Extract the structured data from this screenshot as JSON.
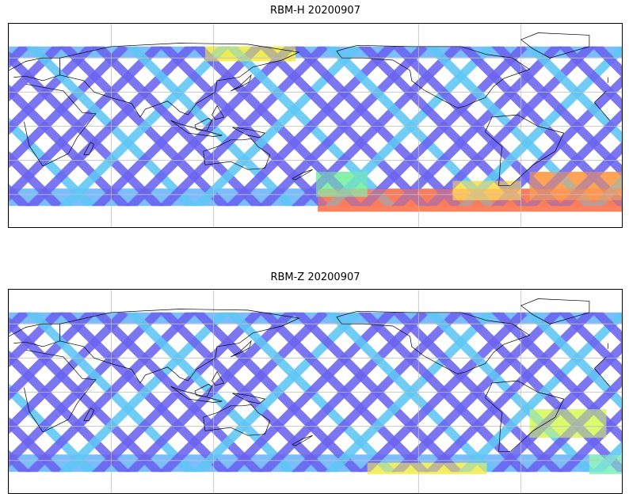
{
  "panels": [
    {
      "title": "RBM-H 20200907",
      "hot_bands": [
        {
          "lon": [
            -179,
            1
          ],
          "lat": [
            -75,
            -55
          ],
          "color": "#ff7a55"
        },
        {
          "lon": [
            -55,
            1
          ],
          "lat": [
            -65,
            -40
          ],
          "color": "#ffa050"
        },
        {
          "lon": [
            115,
            168
          ],
          "lat": [
            57,
            70
          ],
          "color": "#f4ef4c"
        },
        {
          "lon": [
            -180,
            -150
          ],
          "lat": [
            -62,
            -40
          ],
          "color": "#7ff0a8"
        },
        {
          "lon": [
            -100,
            -60
          ],
          "lat": [
            -65,
            -48
          ],
          "color": "#ffe05a"
        }
      ]
    },
    {
      "title": "RBM-Z 20200907",
      "hot_bands": [
        {
          "lon": [
            -150,
            -80
          ],
          "lat": [
            -72,
            -62
          ],
          "color": "#f6f05a"
        },
        {
          "lon": [
            -55,
            -10
          ],
          "lat": [
            -40,
            -15
          ],
          "color": "#d9f968"
        },
        {
          "lon": [
            -20,
            1
          ],
          "lat": [
            -72,
            -55
          ],
          "color": "#8ff3c0"
        }
      ]
    }
  ],
  "colors": {
    "swath_base": "#6a64f0",
    "swath_light": "#5fc7f5",
    "pole_band": "#4fa8ff",
    "coast": "#000000",
    "grid": "#bfbfbf"
  },
  "projection": {
    "central_longitude": 180,
    "lon_range": [
      0,
      360
    ],
    "lat_range": [
      -90,
      90
    ]
  },
  "gridlines": {
    "lons": [
      -120,
      -60,
      0,
      60,
      120
    ],
    "lats": [
      -60,
      -30,
      0,
      30,
      60
    ]
  },
  "coverage": {
    "lat_limits": [
      -70,
      70
    ]
  }
}
